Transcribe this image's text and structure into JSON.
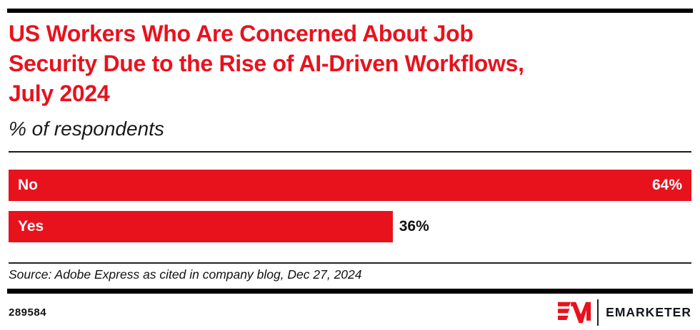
{
  "header": {
    "title_lines": [
      "US Workers Who Are Concerned About Job",
      "Security Due to the Rise of AI-Driven Workflows,",
      "July 2024"
    ],
    "subtitle": "% of respondents"
  },
  "chart_data": {
    "type": "bar",
    "orientation": "horizontal",
    "title": "US Workers Who Are Concerned About Job Security Due to the Rise of AI-Driven Workflows, July 2024",
    "subtitle": "% of respondents",
    "categories": [
      "No",
      "Yes"
    ],
    "values": [
      64,
      36
    ],
    "value_labels": [
      "64%",
      "36%"
    ],
    "unit": "%",
    "xlim": [
      0,
      64
    ],
    "grid": false,
    "legend": false,
    "bar_color": "#e8121d",
    "category_label_position": "inside-start",
    "value_label_positions": [
      "inside-end",
      "outside-end"
    ]
  },
  "footer": {
    "source": "Source: Adobe Express as cited in company blog, Dec 27, 2024",
    "chart_id": "289584",
    "brand": "EMARKETER"
  },
  "colors": {
    "accent_red": "#e8121d",
    "text_dark": "#111111",
    "rule_black": "#000000",
    "bar_label_white": "#ffffff"
  }
}
